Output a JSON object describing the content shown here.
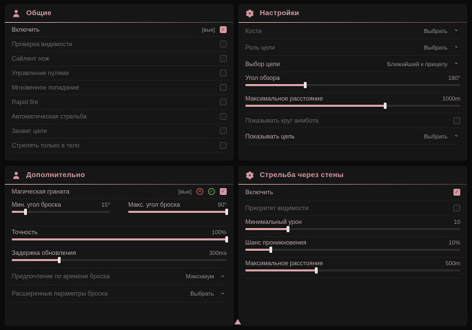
{
  "colors": {
    "accent": "#d698a2",
    "panel_bg": "#161616",
    "page_bg": "#0a0a0a"
  },
  "panels": {
    "general": {
      "title": "Общие",
      "icon": "person-icon",
      "rows": [
        {
          "label": "Включить",
          "value": "[вык]",
          "checked": true,
          "dim": false
        },
        {
          "label": "Проверка видимости",
          "checked": false,
          "dim": true
        },
        {
          "label": "Сайлент нож",
          "checked": false,
          "dim": true
        },
        {
          "label": "Управление пулями",
          "checked": false,
          "dim": true
        },
        {
          "label": "Мгновенное попадание",
          "checked": false,
          "dim": true
        },
        {
          "label": "Rapid fire",
          "checked": false,
          "dim": true
        },
        {
          "label": "Автоматическая стрельба",
          "checked": false,
          "dim": true
        },
        {
          "label": "Захват цели",
          "checked": false,
          "dim": true
        },
        {
          "label": "Стрелять только в тело",
          "checked": false,
          "dim": true
        }
      ]
    },
    "settings": {
      "title": "Настройки",
      "icon": "gear-icon",
      "rows": {
        "bones": {
          "label": "Кости",
          "value": "Выбрать",
          "dim": true
        },
        "target_role": {
          "label": "Роль цели",
          "value": "Выбрать",
          "dim": true
        },
        "target_select": {
          "label": "Выбор цели",
          "value": "Ближайший к прицелу",
          "dim": false
        },
        "fov": {
          "label": "Угол обзора",
          "value": "180°",
          "percent": 28
        },
        "max_distance": {
          "label": "Максимальное расстояние",
          "value": "1000m",
          "percent": 65
        },
        "show_circle": {
          "label": "Показывать круг аимбота",
          "checked": false,
          "dim": true
        },
        "show_target": {
          "label": "Показывать цель",
          "value": "Выбрать",
          "dim": false
        }
      }
    },
    "additional": {
      "title": "Дополнительно",
      "icon": "person-icon",
      "rows": {
        "magic_grenade": {
          "label": "Магическая граната",
          "value": "[вык]",
          "checked": true,
          "icons": [
            "x-circle-icon",
            "check-circle-icon"
          ]
        },
        "min_angle": {
          "label": "Мин. угол броска",
          "value": "15°",
          "percent": 14
        },
        "max_angle": {
          "label": "Макс. угол броска",
          "value": "90°",
          "percent": 100
        },
        "accuracy": {
          "label": "Точность",
          "value": "100%",
          "percent": 100
        },
        "update_delay": {
          "label": "Задержка обновления",
          "value": "300ms",
          "percent": 22
        },
        "throw_time": {
          "label": "Предпочтение по времени броска",
          "value": "Максимум",
          "dim": true
        },
        "advanced": {
          "label": "Расширенные параметры броска",
          "value": "Выбрать",
          "dim": true
        }
      }
    },
    "wallbang": {
      "title": "Стрельба через стены",
      "icon": "gear-icon",
      "rows": {
        "enable": {
          "label": "Включить",
          "checked": true,
          "dim": false
        },
        "visibility_priority": {
          "label": "Приоритет видимости",
          "checked": false,
          "dim": true
        },
        "min_damage": {
          "label": "Минимальный урон",
          "value": "10",
          "percent": 20
        },
        "penetration_chance": {
          "label": "Шанс проникновения",
          "value": "10%",
          "percent": 12
        },
        "max_distance": {
          "label": "Максимальное расстояние",
          "value": "500m",
          "percent": 33
        }
      }
    }
  }
}
